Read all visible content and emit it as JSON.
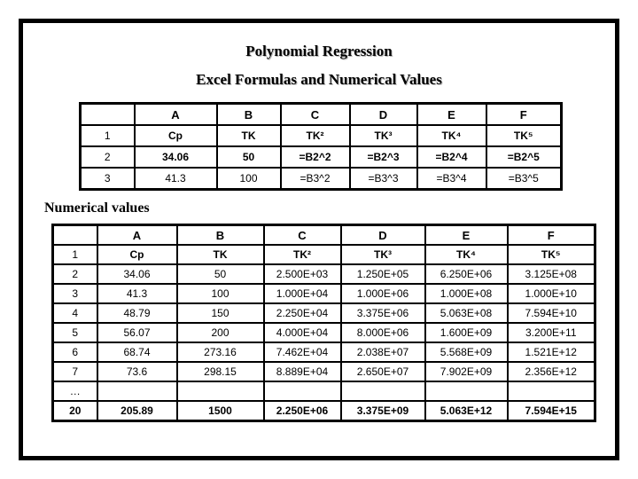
{
  "page": {
    "title": "Polynomial Regression",
    "subtitle": "Excel Formulas and Numerical Values",
    "section_label": "Numerical values"
  },
  "colors": {
    "background": "#ffffff",
    "frame_border": "#000000",
    "grid_border": "#000000",
    "header_text": "#000000",
    "variable_blue": "#333399",
    "highlight_red": "#b22222"
  },
  "formula_table": {
    "columns": [
      "",
      "A",
      "B",
      "C",
      "D",
      "E",
      "F"
    ],
    "rows": [
      {
        "label": "1",
        "label_style": "plain",
        "cell_style": "blue",
        "cells": [
          "Cp",
          "TK",
          "TK²",
          "TK³",
          "TK⁴",
          "TK⁵"
        ]
      },
      {
        "label": "2",
        "label_style": "plain",
        "cell_style": "red",
        "cells": [
          "34.06",
          "50",
          "=B2^2",
          "=B2^3",
          "=B2^4",
          "=B2^5"
        ]
      },
      {
        "label": "3",
        "label_style": "plain",
        "cell_style": "plain",
        "cells": [
          "41.3",
          "100",
          "=B3^2",
          "=B3^3",
          "=B3^4",
          "=B3^5"
        ]
      }
    ]
  },
  "values_table": {
    "columns": [
      "",
      "A",
      "B",
      "C",
      "D",
      "E",
      "F"
    ],
    "rows": [
      {
        "label": "1",
        "label_style": "plain",
        "cell_style": "blue",
        "cells": [
          "Cp",
          "TK",
          "TK²",
          "TK³",
          "TK⁴",
          "TK⁵"
        ]
      },
      {
        "label": "2",
        "label_style": "plain",
        "cell_style": "plain",
        "cells": [
          "34.06",
          "50",
          "2.500E+03",
          "1.250E+05",
          "6.250E+06",
          "3.125E+08"
        ]
      },
      {
        "label": "3",
        "label_style": "plain",
        "cell_style": "plain",
        "cells": [
          "41.3",
          "100",
          "1.000E+04",
          "1.000E+06",
          "1.000E+08",
          "1.000E+10"
        ]
      },
      {
        "label": "4",
        "label_style": "plain",
        "cell_style": "plain",
        "cells": [
          "48.79",
          "150",
          "2.250E+04",
          "3.375E+06",
          "5.063E+08",
          "7.594E+10"
        ]
      },
      {
        "label": "5",
        "label_style": "plain",
        "cell_style": "plain",
        "cells": [
          "56.07",
          "200",
          "4.000E+04",
          "8.000E+06",
          "1.600E+09",
          "3.200E+11"
        ]
      },
      {
        "label": "6",
        "label_style": "plain",
        "cell_style": "plain",
        "cells": [
          "68.74",
          "273.16",
          "7.462E+04",
          "2.038E+07",
          "5.568E+09",
          "1.521E+12"
        ]
      },
      {
        "label": "7",
        "label_style": "plain",
        "cell_style": "plain",
        "cells": [
          "73.6",
          "298.15",
          "8.889E+04",
          "2.650E+07",
          "7.902E+09",
          "2.356E+12"
        ]
      },
      {
        "label": "…",
        "label_style": "plain",
        "cell_style": "plain",
        "cells": [
          "",
          "",
          "",
          "",
          "",
          ""
        ]
      },
      {
        "label": "20",
        "label_style": "red",
        "cell_style": "red",
        "cells": [
          "205.89",
          "1500",
          "2.250E+06",
          "3.375E+09",
          "5.063E+12",
          "7.594E+15"
        ]
      }
    ]
  }
}
